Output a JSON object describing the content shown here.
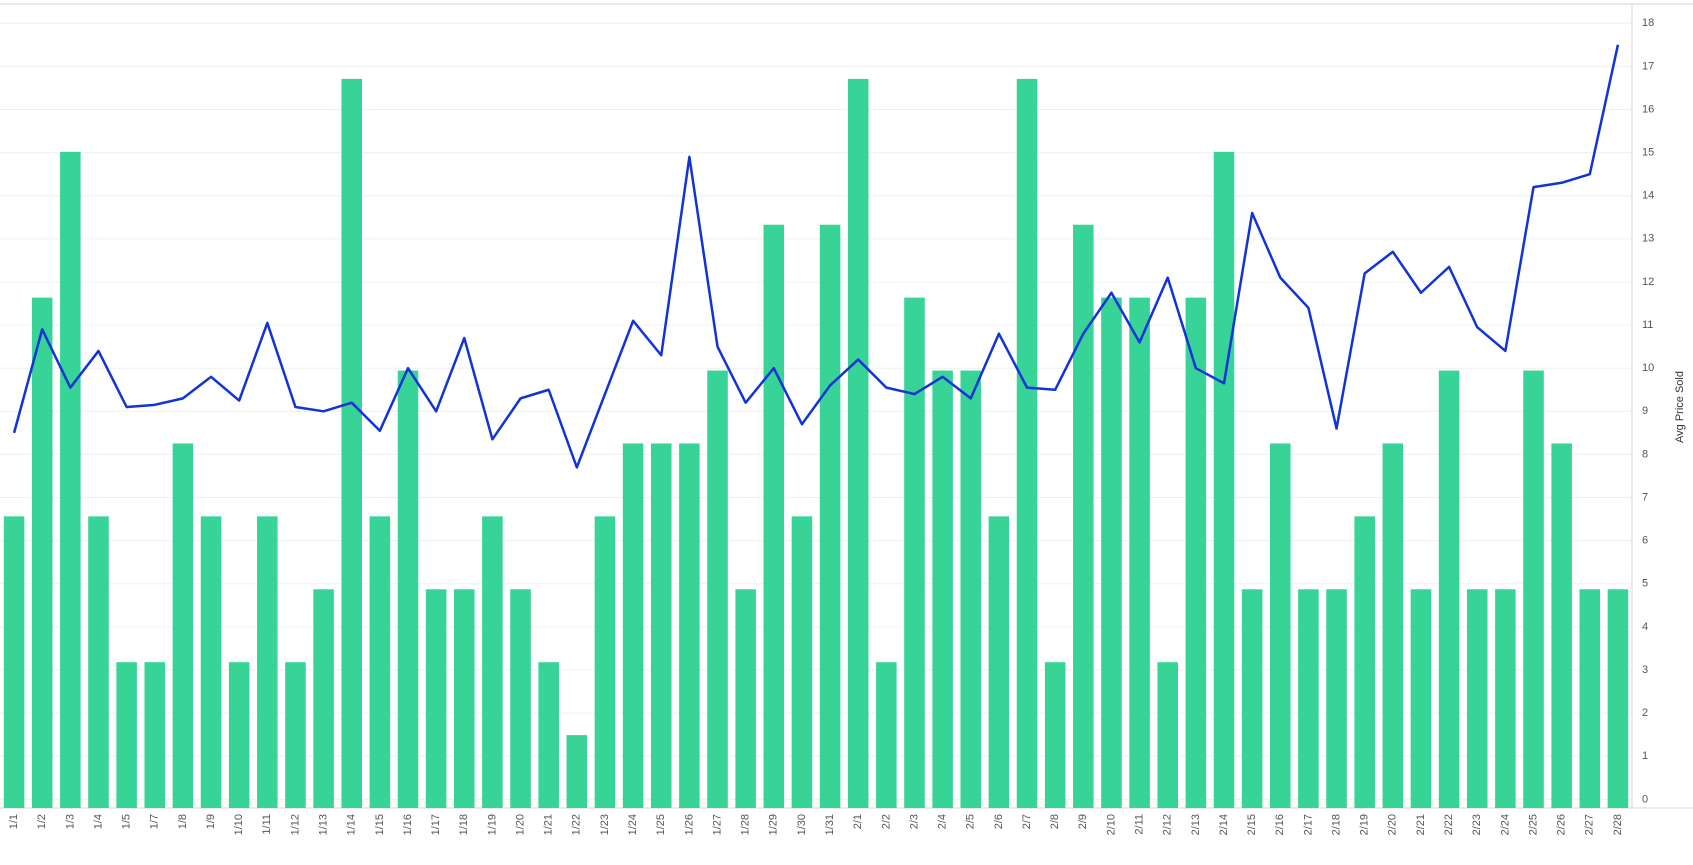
{
  "chart_data": {
    "type": "bar-line",
    "categories": [
      "1/1",
      "1/2",
      "1/3",
      "1/4",
      "1/5",
      "1/7",
      "1/8",
      "1/9",
      "1/10",
      "1/11",
      "1/12",
      "1/13",
      "1/14",
      "1/15",
      "1/16",
      "1/17",
      "1/18",
      "1/19",
      "1/20",
      "1/21",
      "1/22",
      "1/23",
      "1/24",
      "1/25",
      "1/26",
      "1/27",
      "1/28",
      "1/29",
      "1/30",
      "1/31",
      "2/1",
      "2/2",
      "2/3",
      "2/4",
      "2/5",
      "2/6",
      "2/7",
      "2/8",
      "2/9",
      "2/10",
      "2/11",
      "2/12",
      "2/13",
      "2/14",
      "2/15",
      "2/16",
      "2/17",
      "2/18",
      "2/19",
      "2/20",
      "2/21",
      "2/22",
      "2/23",
      "2/24",
      "2/25",
      "2/26",
      "2/27",
      "2/28"
    ],
    "series": [
      {
        "type": "bar",
        "color": "#38d396",
        "values": [
          4,
          7,
          9,
          4,
          2,
          2,
          5,
          4,
          2,
          4,
          2,
          3,
          10,
          4,
          6,
          3,
          3,
          4,
          3,
          2,
          1,
          4,
          5,
          5,
          5,
          6,
          3,
          8,
          4,
          8,
          10,
          2,
          7,
          6,
          6,
          4,
          10,
          2,
          8,
          7,
          7,
          2,
          7,
          9,
          3,
          5,
          3,
          3,
          4,
          5,
          3,
          6,
          3,
          3,
          6,
          5,
          3,
          3
        ]
      },
      {
        "type": "line",
        "axis": "y2",
        "color": "#1233d6",
        "values": [
          8.5,
          10.9,
          9.55,
          10.4,
          9.1,
          9.15,
          9.3,
          9.8,
          9.25,
          11.05,
          9.1,
          9.0,
          9.2,
          8.55,
          10.0,
          9.0,
          10.7,
          8.35,
          9.3,
          9.5,
          7.7,
          9.4,
          11.1,
          10.3,
          14.9,
          10.5,
          9.2,
          10.0,
          8.7,
          9.6,
          10.2,
          9.55,
          9.4,
          9.8,
          9.3,
          10.8,
          9.55,
          9.5,
          10.8,
          11.75,
          10.6,
          12.1,
          10.0,
          9.65,
          13.6,
          12.1,
          11.4,
          8.6,
          12.2,
          12.7,
          11.75,
          12.35,
          10.95,
          10.4,
          14.2,
          14.3,
          14.5,
          17.5
        ]
      }
    ],
    "ylim": [
      0,
      11
    ],
    "y2lim": [
      -0.2,
      18.4
    ],
    "y2ticks": [
      0,
      1,
      2,
      3,
      4,
      5,
      6,
      7,
      8,
      9,
      10,
      11,
      12,
      13,
      14,
      15,
      16,
      17,
      18
    ],
    "y2label": "Avg Price Sold",
    "grid": true
  }
}
